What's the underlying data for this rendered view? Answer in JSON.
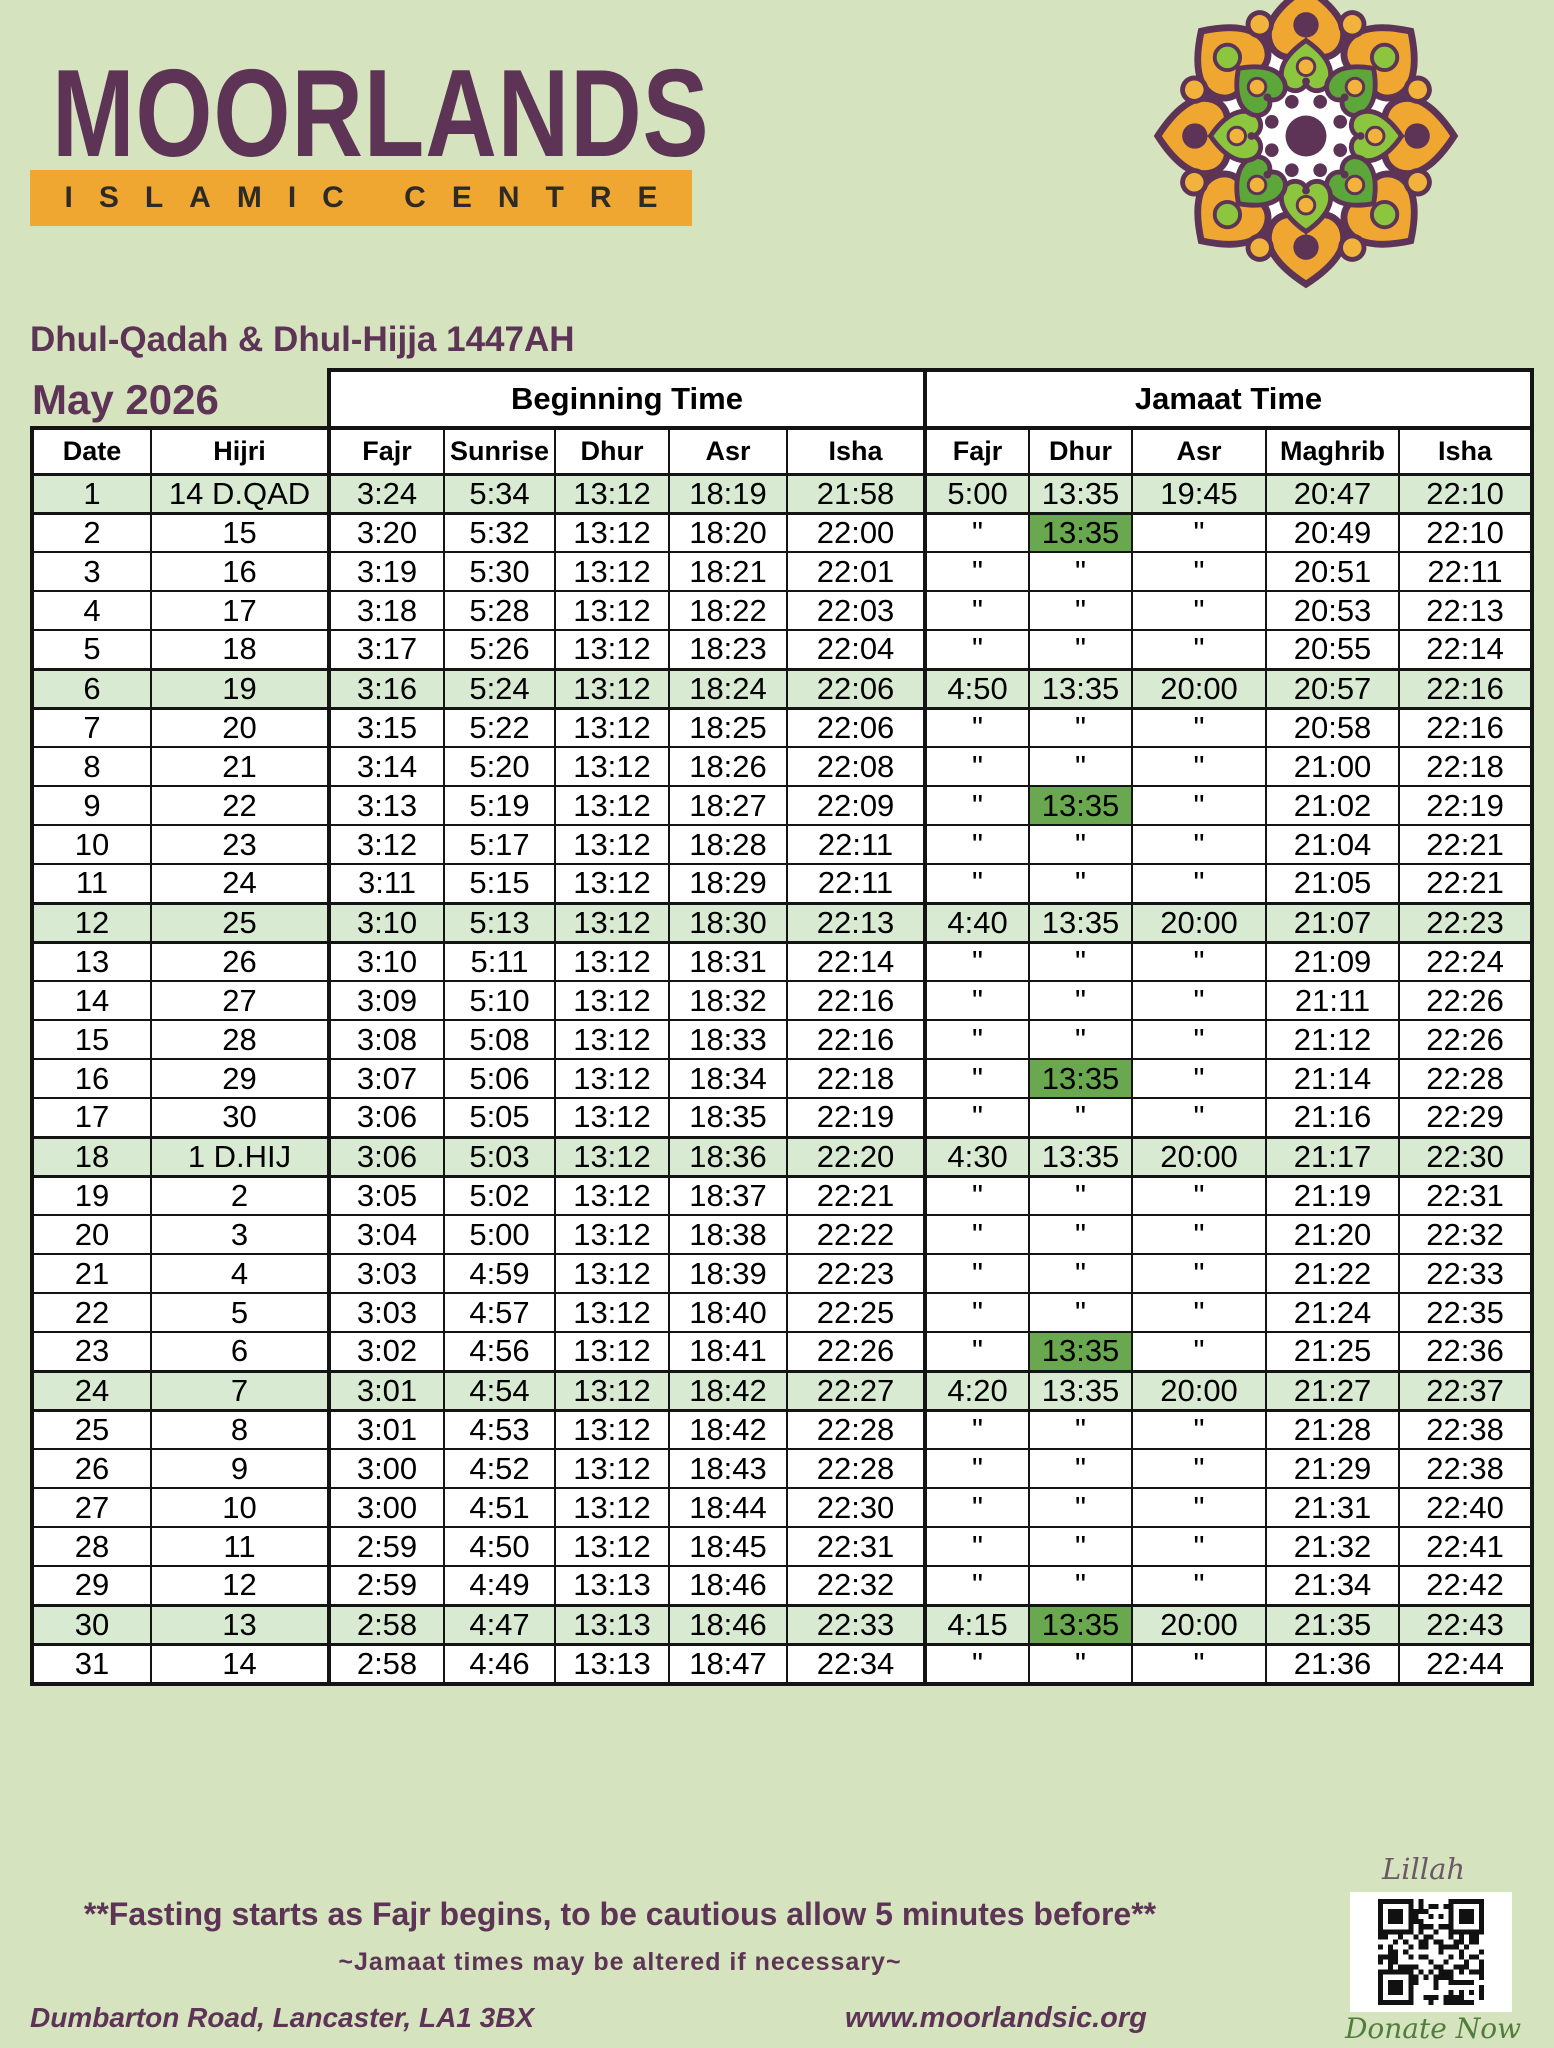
{
  "brand": {
    "name": "MOORLANDS",
    "tagline": "ISLAMIC CENTRE"
  },
  "header": {
    "title": "Dhul-Qadah & Dhul-Hijja 1447AH",
    "month": "May 2026"
  },
  "colors": {
    "page_bg": "#d6e3bf",
    "brand_purple": "#5d3456",
    "band_orange": "#f0a732",
    "highlight_row": "#d9ead3",
    "jumuah_cell": "#6aa84f",
    "donate_green": "#4f7d3a"
  },
  "table": {
    "group_headers": {
      "beginning": "Beginning Time",
      "jamaat": "Jamaat Time"
    },
    "columns": [
      "Date",
      "Hijri",
      "Fajr",
      "Sunrise",
      "Dhur",
      "Asr",
      "Isha",
      "Fajr",
      "Dhur",
      "Asr",
      "Maghrib",
      "Isha"
    ],
    "rows": [
      {
        "cells": [
          "1",
          "14 D.QAD",
          "3:24",
          "5:34",
          "13:12",
          "18:19",
          "21:58",
          "5:00",
          "13:35",
          "19:45",
          "20:47",
          "22:10"
        ],
        "highlight": true,
        "jumuah": false
      },
      {
        "cells": [
          "2",
          "15",
          "3:20",
          "5:32",
          "13:12",
          "18:20",
          "22:00",
          "\"",
          "13:35",
          "\"",
          "20:49",
          "22:10"
        ],
        "highlight": false,
        "jumuah": true
      },
      {
        "cells": [
          "3",
          "16",
          "3:19",
          "5:30",
          "13:12",
          "18:21",
          "22:01",
          "\"",
          "\"",
          "\"",
          "20:51",
          "22:11"
        ],
        "highlight": false,
        "jumuah": false
      },
      {
        "cells": [
          "4",
          "17",
          "3:18",
          "5:28",
          "13:12",
          "18:22",
          "22:03",
          "\"",
          "\"",
          "\"",
          "20:53",
          "22:13"
        ],
        "highlight": false,
        "jumuah": false
      },
      {
        "cells": [
          "5",
          "18",
          "3:17",
          "5:26",
          "13:12",
          "18:23",
          "22:04",
          "\"",
          "\"",
          "\"",
          "20:55",
          "22:14"
        ],
        "highlight": false,
        "jumuah": false
      },
      {
        "cells": [
          "6",
          "19",
          "3:16",
          "5:24",
          "13:12",
          "18:24",
          "22:06",
          "4:50",
          "13:35",
          "20:00",
          "20:57",
          "22:16"
        ],
        "highlight": true,
        "jumuah": false
      },
      {
        "cells": [
          "7",
          "20",
          "3:15",
          "5:22",
          "13:12",
          "18:25",
          "22:06",
          "\"",
          "\"",
          "\"",
          "20:58",
          "22:16"
        ],
        "highlight": false,
        "jumuah": false
      },
      {
        "cells": [
          "8",
          "21",
          "3:14",
          "5:20",
          "13:12",
          "18:26",
          "22:08",
          "\"",
          "\"",
          "\"",
          "21:00",
          "22:18"
        ],
        "highlight": false,
        "jumuah": false
      },
      {
        "cells": [
          "9",
          "22",
          "3:13",
          "5:19",
          "13:12",
          "18:27",
          "22:09",
          "\"",
          "13:35",
          "\"",
          "21:02",
          "22:19"
        ],
        "highlight": false,
        "jumuah": true
      },
      {
        "cells": [
          "10",
          "23",
          "3:12",
          "5:17",
          "13:12",
          "18:28",
          "22:11",
          "\"",
          "\"",
          "\"",
          "21:04",
          "22:21"
        ],
        "highlight": false,
        "jumuah": false
      },
      {
        "cells": [
          "11",
          "24",
          "3:11",
          "5:15",
          "13:12",
          "18:29",
          "22:11",
          "\"",
          "\"",
          "\"",
          "21:05",
          "22:21"
        ],
        "highlight": false,
        "jumuah": false
      },
      {
        "cells": [
          "12",
          "25",
          "3:10",
          "5:13",
          "13:12",
          "18:30",
          "22:13",
          "4:40",
          "13:35",
          "20:00",
          "21:07",
          "22:23"
        ],
        "highlight": true,
        "jumuah": false
      },
      {
        "cells": [
          "13",
          "26",
          "3:10",
          "5:11",
          "13:12",
          "18:31",
          "22:14",
          "\"",
          "\"",
          "\"",
          "21:09",
          "22:24"
        ],
        "highlight": false,
        "jumuah": false
      },
      {
        "cells": [
          "14",
          "27",
          "3:09",
          "5:10",
          "13:12",
          "18:32",
          "22:16",
          "\"",
          "\"",
          "\"",
          "21:11",
          "22:26"
        ],
        "highlight": false,
        "jumuah": false
      },
      {
        "cells": [
          "15",
          "28",
          "3:08",
          "5:08",
          "13:12",
          "18:33",
          "22:16",
          "\"",
          "\"",
          "\"",
          "21:12",
          "22:26"
        ],
        "highlight": false,
        "jumuah": false
      },
      {
        "cells": [
          "16",
          "29",
          "3:07",
          "5:06",
          "13:12",
          "18:34",
          "22:18",
          "\"",
          "13:35",
          "\"",
          "21:14",
          "22:28"
        ],
        "highlight": false,
        "jumuah": true
      },
      {
        "cells": [
          "17",
          "30",
          "3:06",
          "5:05",
          "13:12",
          "18:35",
          "22:19",
          "\"",
          "\"",
          "\"",
          "21:16",
          "22:29"
        ],
        "highlight": false,
        "jumuah": false
      },
      {
        "cells": [
          "18",
          "1 D.HIJ",
          "3:06",
          "5:03",
          "13:12",
          "18:36",
          "22:20",
          "4:30",
          "13:35",
          "20:00",
          "21:17",
          "22:30"
        ],
        "highlight": true,
        "jumuah": false
      },
      {
        "cells": [
          "19",
          "2",
          "3:05",
          "5:02",
          "13:12",
          "18:37",
          "22:21",
          "\"",
          "\"",
          "\"",
          "21:19",
          "22:31"
        ],
        "highlight": false,
        "jumuah": false
      },
      {
        "cells": [
          "20",
          "3",
          "3:04",
          "5:00",
          "13:12",
          "18:38",
          "22:22",
          "\"",
          "\"",
          "\"",
          "21:20",
          "22:32"
        ],
        "highlight": false,
        "jumuah": false
      },
      {
        "cells": [
          "21",
          "4",
          "3:03",
          "4:59",
          "13:12",
          "18:39",
          "22:23",
          "\"",
          "\"",
          "\"",
          "21:22",
          "22:33"
        ],
        "highlight": false,
        "jumuah": false
      },
      {
        "cells": [
          "22",
          "5",
          "3:03",
          "4:57",
          "13:12",
          "18:40",
          "22:25",
          "\"",
          "\"",
          "\"",
          "21:24",
          "22:35"
        ],
        "highlight": false,
        "jumuah": false
      },
      {
        "cells": [
          "23",
          "6",
          "3:02",
          "4:56",
          "13:12",
          "18:41",
          "22:26",
          "\"",
          "13:35",
          "\"",
          "21:25",
          "22:36"
        ],
        "highlight": false,
        "jumuah": true
      },
      {
        "cells": [
          "24",
          "7",
          "3:01",
          "4:54",
          "13:12",
          "18:42",
          "22:27",
          "4:20",
          "13:35",
          "20:00",
          "21:27",
          "22:37"
        ],
        "highlight": true,
        "jumuah": false
      },
      {
        "cells": [
          "25",
          "8",
          "3:01",
          "4:53",
          "13:12",
          "18:42",
          "22:28",
          "\"",
          "\"",
          "\"",
          "21:28",
          "22:38"
        ],
        "highlight": false,
        "jumuah": false
      },
      {
        "cells": [
          "26",
          "9",
          "3:00",
          "4:52",
          "13:12",
          "18:43",
          "22:28",
          "\"",
          "\"",
          "\"",
          "21:29",
          "22:38"
        ],
        "highlight": false,
        "jumuah": false
      },
      {
        "cells": [
          "27",
          "10",
          "3:00",
          "4:51",
          "13:12",
          "18:44",
          "22:30",
          "\"",
          "\"",
          "\"",
          "21:31",
          "22:40"
        ],
        "highlight": false,
        "jumuah": false
      },
      {
        "cells": [
          "28",
          "11",
          "2:59",
          "4:50",
          "13:12",
          "18:45",
          "22:31",
          "\"",
          "\"",
          "\"",
          "21:32",
          "22:41"
        ],
        "highlight": false,
        "jumuah": false
      },
      {
        "cells": [
          "29",
          "12",
          "2:59",
          "4:49",
          "13:13",
          "18:46",
          "22:32",
          "\"",
          "\"",
          "\"",
          "21:34",
          "22:42"
        ],
        "highlight": false,
        "jumuah": false
      },
      {
        "cells": [
          "30",
          "13",
          "2:58",
          "4:47",
          "13:13",
          "18:46",
          "22:33",
          "4:15",
          "13:35",
          "20:00",
          "21:35",
          "22:43"
        ],
        "highlight": true,
        "jumuah": true
      },
      {
        "cells": [
          "31",
          "14",
          "2:58",
          "4:46",
          "13:13",
          "18:47",
          "22:34",
          "\"",
          "\"",
          "\"",
          "21:36",
          "22:44"
        ],
        "highlight": false,
        "jumuah": false
      }
    ]
  },
  "notes": {
    "fasting": "**Fasting starts as Fajr begins, to be cautious allow 5 minutes before**",
    "jamaat": "~Jamaat times may be altered if necessary~"
  },
  "footer": {
    "address": "Dumbarton Road, Lancaster, LA1 3BX",
    "website": "www.moorlandsic.org",
    "lillah_label": "Lillah",
    "donate_label": "Donate Now"
  }
}
